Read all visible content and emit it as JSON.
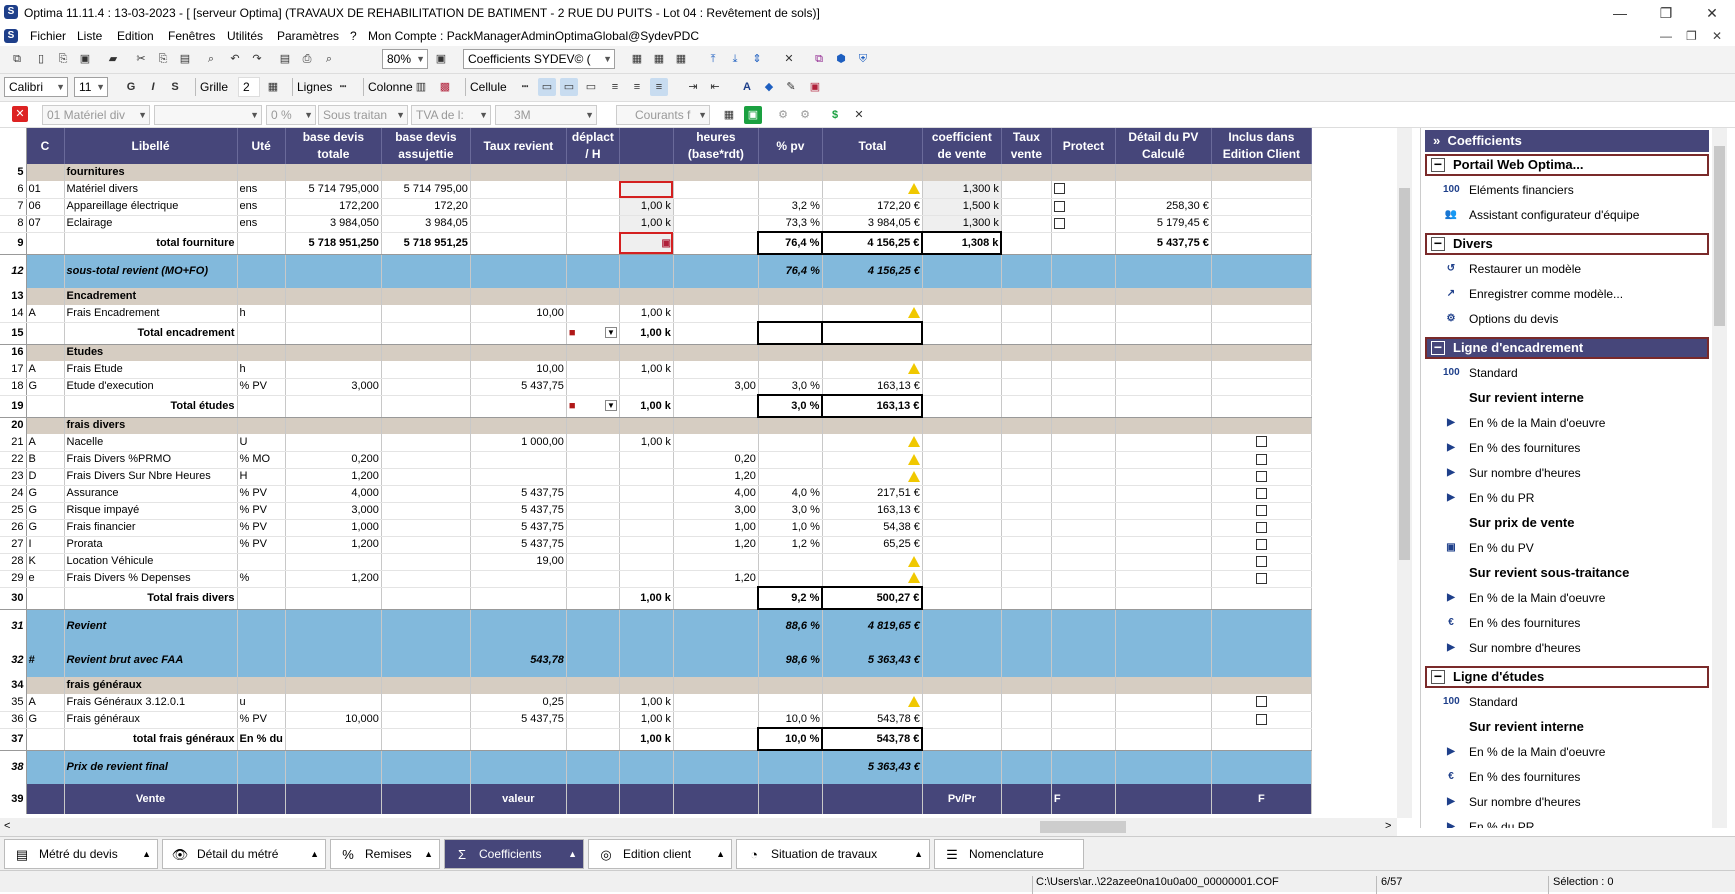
{
  "window": {
    "title": "Optima 11.11.4 : 13-03-2023 - [ [serveur Optima] (TRAVAUX DE REHABILITATION DE BATIMENT - 2 RUE DU PUITS - Lot 04 : Revêtement de sols)]",
    "minimize": "—",
    "maximize": "❐",
    "close": "✕"
  },
  "menu": {
    "items": [
      "Fichier",
      "Liste",
      "Edition",
      "Fenêtres",
      "Utilités",
      "Paramètres",
      "?",
      "Mon Compte : PackManagerAdminOptimaGlobal@SydevPDC"
    ],
    "sub_controls": [
      "—",
      "❐",
      "✕"
    ]
  },
  "toolbar1": {
    "zoom": "80%",
    "mode": "Coefficients  SYDEV© ( "
  },
  "toolbar2": {
    "font": "Calibri",
    "size": "11",
    "bold": "G",
    "italic": "I",
    "strike": "S",
    "grille_label": "Grille",
    "grille_value": "2",
    "lignes_label": "Lignes",
    "colonne_label": "Colonne",
    "cellule_label": "Cellule"
  },
  "toolbar3": {
    "c1": "01  Matériel div",
    "c2": "",
    "c3": "0 %",
    "c4": "Sous traitan",
    "c5": "TVA de l:",
    "c6": "3M",
    "c7": "Courants f"
  },
  "grid": {
    "headers": [
      "C",
      "Libellé",
      "Uté",
      "base devis totale",
      "base devis assujettie",
      "Taux revient",
      "déplact / H",
      "",
      "heures (base*rdt)",
      "% pv",
      "Total",
      "coefficient de vente",
      "Taux vente",
      "Protect",
      "Détail du PV Calculé",
      "Inclus dans Edition Client"
    ],
    "rows": [
      {
        "n": "5",
        "type": "sec",
        "cells": [
          "",
          "fournitures",
          "",
          "",
          "",
          "",
          "",
          "",
          "",
          "",
          "",
          "",
          "",
          "",
          "",
          ""
        ]
      },
      {
        "n": "6",
        "type": "norm",
        "cur": true,
        "cells": [
          "01",
          "Matériel divers",
          "ens",
          "5 714 795,000",
          "5 714 795,00",
          "",
          "",
          "",
          "",
          "",
          "W",
          "1,300 k",
          "",
          "CHK",
          "",
          ""
        ]
      },
      {
        "n": "7",
        "type": "norm",
        "cells": [
          "06",
          "Appareillage électrique",
          "ens",
          "172,200",
          "172,20",
          "",
          "",
          "1,00 k",
          "",
          "3,2 %",
          "172,20 €",
          "1,500 k",
          "",
          "CHK",
          "258,30 €",
          ""
        ]
      },
      {
        "n": "8",
        "type": "norm",
        "cells": [
          "07",
          "Eclairage",
          "ens",
          "3 984,050",
          "3 984,05",
          "",
          "",
          "1,00 k",
          "",
          "73,3 %",
          "3 984,05 €",
          "1,300 k",
          "",
          "CHK",
          "5 179,45 €",
          ""
        ]
      },
      {
        "n": "9",
        "type": "tot",
        "cells": [
          "",
          "total fourniture",
          "",
          "5 718 951,250",
          "5 718 951,25",
          "",
          "",
          "",
          "",
          "76,4 %",
          "4 156,25 €",
          "1,308 k",
          "",
          "",
          "5 437,75 €",
          ""
        ]
      },
      {
        "n": "12",
        "type": "blue",
        "cells": [
          "",
          "sous-total revient (MO+FO)",
          "",
          "",
          "",
          "",
          "",
          "",
          "",
          "76,4 %",
          "4 156,25 €",
          "",
          "",
          "",
          "",
          ""
        ]
      },
      {
        "n": "13",
        "type": "sec",
        "cells": [
          "",
          "Encadrement",
          "",
          "",
          "",
          "",
          "",
          "",
          "",
          "",
          "",
          "",
          "",
          "",
          "",
          ""
        ]
      },
      {
        "n": "14",
        "type": "norm",
        "cells": [
          "A",
          "Frais Encadrement",
          "h",
          "",
          "",
          "10,00",
          "",
          "1,00 k",
          "",
          "",
          "W",
          "",
          "",
          "",
          "",
          ""
        ]
      },
      {
        "n": "15",
        "type": "tot",
        "cells": [
          "",
          "Total encadrement",
          "",
          "",
          "",
          "",
          "CAR",
          "1,00 k",
          "",
          "",
          "",
          "",
          "",
          "",
          "",
          ""
        ]
      },
      {
        "n": "16",
        "type": "sec",
        "cells": [
          "",
          "Etudes",
          "",
          "",
          "",
          "",
          "",
          "",
          "",
          "",
          "",
          "",
          "",
          "",
          "",
          ""
        ]
      },
      {
        "n": "17",
        "type": "norm",
        "cells": [
          "A",
          "Frais Etude",
          "h",
          "",
          "",
          "10,00",
          "",
          "1,00 k",
          "",
          "",
          "W",
          "",
          "",
          "",
          "",
          ""
        ]
      },
      {
        "n": "18",
        "type": "norm",
        "cells": [
          "G",
          "Etude d'execution",
          "% PV",
          "3,000",
          "",
          "5 437,75",
          "",
          "",
          "3,00",
          "3,0 %",
          "163,13 €",
          "",
          "",
          "",
          "",
          ""
        ]
      },
      {
        "n": "19",
        "type": "tot",
        "cells": [
          "",
          "Total études",
          "",
          "",
          "",
          "",
          "CAR",
          "1,00 k",
          "",
          "3,0 %",
          "163,13 €",
          "",
          "",
          "",
          "",
          ""
        ]
      },
      {
        "n": "20",
        "type": "sec",
        "cells": [
          "",
          "frais divers",
          "",
          "",
          "",
          "",
          "",
          "",
          "",
          "",
          "",
          "",
          "",
          "",
          "",
          ""
        ]
      },
      {
        "n": "21",
        "type": "norm",
        "cells": [
          "A",
          "Nacelle",
          "U",
          "",
          "",
          "1 000,00",
          "",
          "1,00 k",
          "",
          "",
          "W",
          "",
          "",
          "",
          "",
          "CHK"
        ]
      },
      {
        "n": "22",
        "type": "norm",
        "cells": [
          "B",
          "Frais Divers %PRMO",
          "% MO",
          "0,200",
          "",
          "",
          "",
          "",
          "0,20",
          "",
          "W",
          "",
          "",
          "",
          "",
          "CHK"
        ]
      },
      {
        "n": "23",
        "type": "norm",
        "cells": [
          "D",
          "Frais Divers Sur Nbre Heures",
          "H",
          "1,200",
          "",
          "",
          "",
          "",
          "1,20",
          "",
          "W",
          "",
          "",
          "",
          "",
          "CHK"
        ]
      },
      {
        "n": "24",
        "type": "norm",
        "cells": [
          "G",
          "Assurance",
          "% PV",
          "4,000",
          "",
          "5 437,75",
          "",
          "",
          "4,00",
          "4,0 %",
          "217,51 €",
          "",
          "",
          "",
          "",
          "CHK"
        ]
      },
      {
        "n": "25",
        "type": "norm",
        "cells": [
          "G",
          "Risque impayé",
          "% PV",
          "3,000",
          "",
          "5 437,75",
          "",
          "",
          "3,00",
          "3,0 %",
          "163,13 €",
          "",
          "",
          "",
          "",
          "CHK"
        ]
      },
      {
        "n": "26",
        "type": "norm",
        "cells": [
          "G",
          "Frais financier",
          "% PV",
          "1,000",
          "",
          "5 437,75",
          "",
          "",
          "1,00",
          "1,0 %",
          "54,38 €",
          "",
          "",
          "",
          "",
          "CHK"
        ]
      },
      {
        "n": "27",
        "type": "norm",
        "cells": [
          "I",
          "Prorata",
          "% PV",
          "1,200",
          "",
          "5 437,75",
          "",
          "",
          "1,20",
          "1,2 %",
          "65,25 €",
          "",
          "",
          "",
          "",
          "CHK"
        ]
      },
      {
        "n": "28",
        "type": "norm",
        "cells": [
          "K",
          "Location Véhicule",
          "",
          "",
          "",
          "19,00",
          "",
          "",
          "",
          "",
          "W",
          "",
          "",
          "",
          "",
          "CHK"
        ]
      },
      {
        "n": "29",
        "type": "norm",
        "cells": [
          "e",
          "Frais Divers % Depenses",
          "%",
          "1,200",
          "",
          "",
          "",
          "",
          "1,20",
          "",
          "W",
          "",
          "",
          "",
          "",
          "CHK"
        ]
      },
      {
        "n": "30",
        "type": "tot",
        "cells": [
          "",
          "Total frais divers",
          "",
          "",
          "",
          "",
          "",
          "1,00 k",
          "",
          "9,2 %",
          "500,27 €",
          "",
          "",
          "",
          "",
          ""
        ]
      },
      {
        "n": "31",
        "type": "blue",
        "cells": [
          "",
          "Revient",
          "",
          "",
          "",
          "",
          "",
          "",
          "",
          "88,6 %",
          "4 819,65 €",
          "",
          "",
          "",
          "",
          ""
        ]
      },
      {
        "n": "32",
        "type": "blue",
        "cells": [
          "#",
          "Revient brut avec FAA",
          "",
          "",
          "",
          "543,78",
          "",
          "",
          "",
          "98,6 %",
          "5 363,43 €",
          "",
          "",
          "",
          "",
          ""
        ]
      },
      {
        "n": "34",
        "type": "sec",
        "cells": [
          "",
          "frais généraux",
          "",
          "",
          "",
          "",
          "",
          "",
          "",
          "",
          "",
          "",
          "",
          "",
          "",
          ""
        ]
      },
      {
        "n": "35",
        "type": "norm",
        "cells": [
          "A",
          "Frais Généraux 3.12.0.1",
          "u",
          "",
          "",
          "0,25",
          "",
          "1,00 k",
          "",
          "",
          "W",
          "",
          "",
          "",
          "",
          "CHK"
        ]
      },
      {
        "n": "36",
        "type": "norm",
        "cells": [
          "G",
          "Frais généraux",
          "% PV",
          "10,000",
          "",
          "5 437,75",
          "",
          "1,00 k",
          "",
          "10,0 %",
          "543,78 €",
          "",
          "",
          "",
          "",
          "CHK"
        ]
      },
      {
        "n": "37",
        "type": "tot",
        "cells": [
          "",
          "total frais généraux",
          "En % du",
          "",
          "",
          "",
          "",
          "1,00 k",
          "",
          "10,0 %",
          "543,78 €",
          "",
          "",
          "",
          "",
          ""
        ]
      },
      {
        "n": "38",
        "type": "blue",
        "cells": [
          "",
          "Prix de revient final",
          "",
          "",
          "",
          "",
          "",
          "",
          "",
          "",
          "5 363,43 €",
          "",
          "",
          "",
          "",
          ""
        ]
      },
      {
        "n": "39",
        "type": "vente",
        "cells": [
          "",
          "Vente",
          "",
          "",
          "",
          "valeur",
          "",
          "",
          "",
          "",
          "",
          "Pv/Pr",
          "",
          "F",
          "",
          "F"
        ]
      }
    ]
  },
  "panel": {
    "header": "Coefficients",
    "groups": [
      {
        "title": "Portail Web Optima...",
        "items": [
          {
            "t": "item",
            "label": "Eléments financiers",
            "icon": "100"
          },
          {
            "t": "item",
            "label": "Assistant configurateur d'équipe",
            "icon": "👥"
          }
        ]
      },
      {
        "title": "Divers",
        "items": [
          {
            "t": "item",
            "label": "Restaurer un modèle",
            "icon": "↺"
          },
          {
            "t": "item",
            "label": "Enregistrer comme modèle...",
            "icon": "↗"
          },
          {
            "t": "item",
            "label": "Options du devis",
            "icon": "⚙"
          }
        ]
      },
      {
        "title": "Ligne d'encadrement",
        "blue": true,
        "items": [
          {
            "t": "item",
            "label": "Standard",
            "icon": "100"
          },
          {
            "t": "sub",
            "label": "Sur revient interne"
          },
          {
            "t": "item",
            "label": "En % de la Main d'oeuvre",
            "icon": "▶"
          },
          {
            "t": "item",
            "label": "En % des fournitures",
            "icon": "▶"
          },
          {
            "t": "item",
            "label": "Sur nombre d'heures",
            "icon": "▶"
          },
          {
            "t": "item",
            "label": "En % du PR",
            "icon": "▶"
          },
          {
            "t": "sub",
            "label": "Sur prix de vente"
          },
          {
            "t": "item",
            "label": "En % du PV",
            "icon": "▣"
          },
          {
            "t": "sub",
            "label": "Sur revient sous-traitance"
          },
          {
            "t": "item",
            "label": "En % de la Main d'oeuvre",
            "icon": "▶"
          },
          {
            "t": "item",
            "label": "En % des fournitures",
            "icon": "€"
          },
          {
            "t": "item",
            "label": "Sur nombre d'heures",
            "icon": "▶"
          }
        ]
      },
      {
        "title": "Ligne d'études",
        "items": [
          {
            "t": "item",
            "label": "Standard",
            "icon": "100"
          },
          {
            "t": "sub",
            "label": "Sur revient interne"
          },
          {
            "t": "item",
            "label": "En % de la Main d'oeuvre",
            "icon": "▶"
          },
          {
            "t": "item",
            "label": "En % des fournitures",
            "icon": "€"
          },
          {
            "t": "item",
            "label": "Sur nombre d'heures",
            "icon": "▶"
          },
          {
            "t": "item",
            "label": "En % du PR",
            "icon": "▶"
          }
        ]
      }
    ]
  },
  "tabs": [
    {
      "label": "Métré du devis",
      "icon": "▤"
    },
    {
      "label": "Détail du métré",
      "icon": "👁"
    },
    {
      "label": "Remises",
      "icon": "%"
    },
    {
      "label": "Coefficients",
      "icon": "Σ",
      "active": true
    },
    {
      "label": "Edition client",
      "icon": "◎"
    },
    {
      "label": "Situation de travaux",
      "icon": "◔"
    },
    {
      "label": "Nomenclature",
      "icon": "☰"
    }
  ],
  "status": {
    "path": "C:\\Users\\ar..\\22azee0na10u0a00_00000001.COF",
    "page": "6/57",
    "selection": "Sélection : 0"
  },
  "colors": {
    "header": "#46467a",
    "section": "#d6cdc2",
    "blue_row": "#82b9dc",
    "selection": "#d42020"
  }
}
